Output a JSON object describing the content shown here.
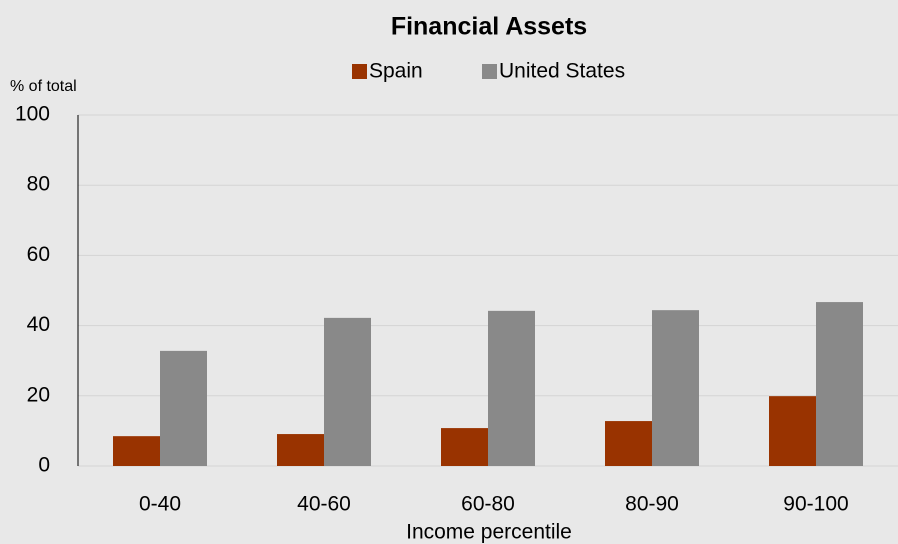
{
  "chart_data": {
    "type": "bar",
    "title": "Financial Assets",
    "y_label": "% of total",
    "x_label": "Income percentile",
    "categories": [
      "0-40",
      "40-60",
      "60-80",
      "80-90",
      "90-100"
    ],
    "series": [
      {
        "name": "Spain",
        "color": "#993300",
        "values": [
          8.5,
          9.1,
          10.8,
          12.8,
          19.9
        ]
      },
      {
        "name": "United States",
        "color": "#898989",
        "values": [
          32.8,
          42.2,
          44.2,
          44.4,
          46.7
        ]
      }
    ],
    "ylim": [
      0,
      100
    ],
    "yticks": [
      0,
      20,
      40,
      60,
      80,
      100
    ],
    "grid": true,
    "legend": "top"
  }
}
